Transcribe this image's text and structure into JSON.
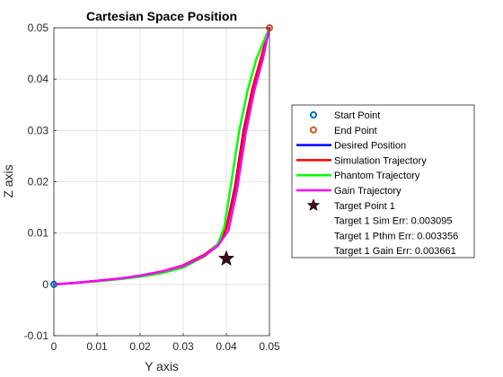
{
  "chart_data": {
    "type": "line",
    "title": "Cartesian Space Position",
    "xlabel": "Y axis",
    "ylabel": "Z axis",
    "xlim": [
      0,
      0.05
    ],
    "ylim": [
      -0.01,
      0.05
    ],
    "xticks": [
      "0",
      "0.01",
      "0.02",
      "0.03",
      "0.04",
      "0.05"
    ],
    "yticks": [
      "-0.01",
      "0",
      "0.01",
      "0.02",
      "0.03",
      "0.04",
      "0.05"
    ],
    "xtick_values": [
      0,
      0.01,
      0.02,
      0.03,
      0.04,
      0.05
    ],
    "ytick_values": [
      -0.01,
      0,
      0.01,
      0.02,
      0.03,
      0.04,
      0.05
    ],
    "grid": true,
    "legend_position": "right",
    "series": [
      {
        "name": "Desired Position",
        "color": "#0000ff",
        "x": [
          0,
          0.005,
          0.01,
          0.015,
          0.02,
          0.025,
          0.03,
          0.035,
          0.038,
          0.04,
          0.042,
          0.044,
          0.046,
          0.048,
          0.05
        ],
        "y": [
          0,
          0.0003,
          0.0007,
          0.0011,
          0.0017,
          0.0025,
          0.0037,
          0.0058,
          0.0078,
          0.011,
          0.019,
          0.03,
          0.038,
          0.044,
          0.05
        ]
      },
      {
        "name": "Simulation Trajectory",
        "color": "#ff0000",
        "x": [
          0,
          0.005,
          0.01,
          0.015,
          0.02,
          0.025,
          0.03,
          0.035,
          0.038,
          0.04,
          0.042,
          0.044,
          0.046,
          0.048,
          0.05
        ],
        "y": [
          0,
          0.0003,
          0.0007,
          0.0011,
          0.0017,
          0.0025,
          0.0037,
          0.0058,
          0.0078,
          0.0108,
          0.0185,
          0.0295,
          0.0378,
          0.044,
          0.05
        ]
      },
      {
        "name": "Phantom Trajectory",
        "color": "#00ff00",
        "x": [
          0,
          0.005,
          0.01,
          0.015,
          0.02,
          0.025,
          0.03,
          0.035,
          0.038,
          0.0395,
          0.041,
          0.043,
          0.045,
          0.047,
          0.05
        ],
        "y": [
          0,
          0.0003,
          0.0006,
          0.001,
          0.0015,
          0.0022,
          0.0033,
          0.0055,
          0.0078,
          0.011,
          0.019,
          0.03,
          0.038,
          0.044,
          0.05
        ]
      },
      {
        "name": "Gain Trajectory",
        "color": "#ff00ff",
        "x": [
          0,
          0.005,
          0.01,
          0.015,
          0.02,
          0.025,
          0.03,
          0.035,
          0.038,
          0.0405,
          0.0425,
          0.0445,
          0.0465,
          0.0485,
          0.05
        ],
        "y": [
          0,
          0.0003,
          0.0007,
          0.0011,
          0.0017,
          0.0025,
          0.0036,
          0.0056,
          0.0075,
          0.0105,
          0.0185,
          0.0295,
          0.0378,
          0.044,
          0.05
        ]
      }
    ],
    "markers": [
      {
        "name": "Start Point",
        "x": 0,
        "y": 0,
        "color": "#0072bd",
        "shape": "circle"
      },
      {
        "name": "End Point",
        "x": 0.05,
        "y": 0.05,
        "color": "#d95319",
        "shape": "circle"
      },
      {
        "name": "Target Point 1",
        "x": 0.04,
        "y": 0.005,
        "color": "#3d0a1e",
        "shape": "star"
      }
    ],
    "legend": [
      {
        "label": "Start Point",
        "kind": "circle",
        "color": "#0072bd"
      },
      {
        "label": "End Point",
        "kind": "circle",
        "color": "#d95319"
      },
      {
        "label": "Desired Position",
        "kind": "line",
        "color": "#0000ff"
      },
      {
        "label": "Simulation Trajectory",
        "kind": "line",
        "color": "#ff0000"
      },
      {
        "label": "Phantom Trajectory",
        "kind": "line",
        "color": "#00ff00"
      },
      {
        "label": "Gain Trajectory",
        "kind": "line",
        "color": "#ff00ff"
      },
      {
        "label": "Target Point 1",
        "kind": "star",
        "color": "#3d0a1e"
      },
      {
        "label": "Target 1 Sim Err: 0.003095",
        "kind": "none",
        "color": ""
      },
      {
        "label": "Target 1 Pthm Err: 0.003356",
        "kind": "none",
        "color": ""
      },
      {
        "label": "Target 1 Gain Err: 0.003661",
        "kind": "none",
        "color": ""
      }
    ]
  }
}
